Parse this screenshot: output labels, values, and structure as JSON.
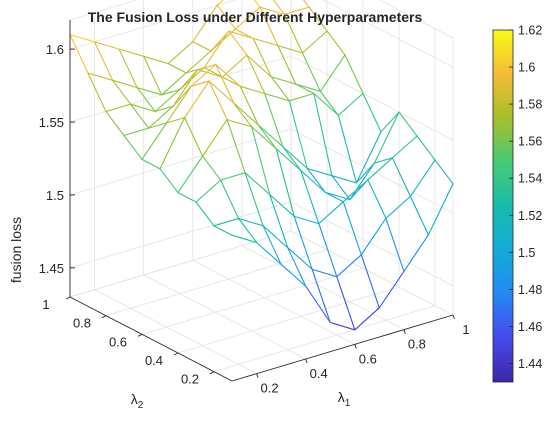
{
  "chart_data": {
    "type": "surface-mesh-3d",
    "title": "The Fusion Loss under Different Hyperparameters",
    "xlabel": "λ1",
    "ylabel": "λ2",
    "zlabel": "fusion loss",
    "x_ticks": [
      "0.2",
      "0.4",
      "0.6",
      "0.8",
      "1"
    ],
    "y_ticks": [
      "0.2",
      "0.4",
      "0.6",
      "0.8",
      "1"
    ],
    "z_ticks": [
      "1.45",
      "1.5",
      "1.55",
      "1.6"
    ],
    "colorbar_ticks": [
      "1.44",
      "1.46",
      "1.48",
      "1.5",
      "1.52",
      "1.54",
      "1.56",
      "1.58",
      "1.6",
      "1.62"
    ],
    "colormap": "parula",
    "xlim": [
      0.1,
      1.0
    ],
    "ylim": [
      0.1,
      1.0
    ],
    "zlim": [
      1.43,
      1.62
    ],
    "clim": [
      1.43,
      1.62
    ],
    "grid": true,
    "x": [
      0.1,
      0.2,
      0.3,
      0.4,
      0.5,
      0.6,
      0.7,
      0.8,
      0.9,
      1.0
    ],
    "y": [
      0.1,
      0.2,
      0.3,
      0.4,
      0.5,
      0.6,
      0.7,
      0.8,
      0.9,
      1.0
    ],
    "z": [
      [
        1.53,
        1.52,
        1.5,
        1.48,
        1.45,
        1.44,
        1.45,
        1.47,
        1.49,
        1.52
      ],
      [
        1.53,
        1.53,
        1.52,
        1.5,
        1.48,
        1.47,
        1.48,
        1.5,
        1.51,
        1.53
      ],
      [
        1.54,
        1.55,
        1.55,
        1.53,
        1.51,
        1.5,
        1.51,
        1.52,
        1.53,
        1.54
      ],
      [
        1.54,
        1.56,
        1.58,
        1.57,
        1.55,
        1.53,
        1.51,
        1.5,
        1.52,
        1.55
      ],
      [
        1.55,
        1.58,
        1.6,
        1.58,
        1.56,
        1.54,
        1.52,
        1.51,
        1.5,
        1.53
      ],
      [
        1.55,
        1.57,
        1.59,
        1.6,
        1.58,
        1.57,
        1.56,
        1.56,
        1.54,
        1.55
      ],
      [
        1.56,
        1.56,
        1.57,
        1.59,
        1.58,
        1.59,
        1.57,
        1.56,
        1.55,
        1.57
      ],
      [
        1.57,
        1.57,
        1.56,
        1.57,
        1.58,
        1.6,
        1.59,
        1.58,
        1.57,
        1.58
      ],
      [
        1.59,
        1.58,
        1.57,
        1.56,
        1.57,
        1.58,
        1.59,
        1.6,
        1.59,
        1.59
      ],
      [
        1.61,
        1.6,
        1.59,
        1.58,
        1.57,
        1.58,
        1.6,
        1.61,
        1.6,
        1.6
      ]
    ]
  }
}
